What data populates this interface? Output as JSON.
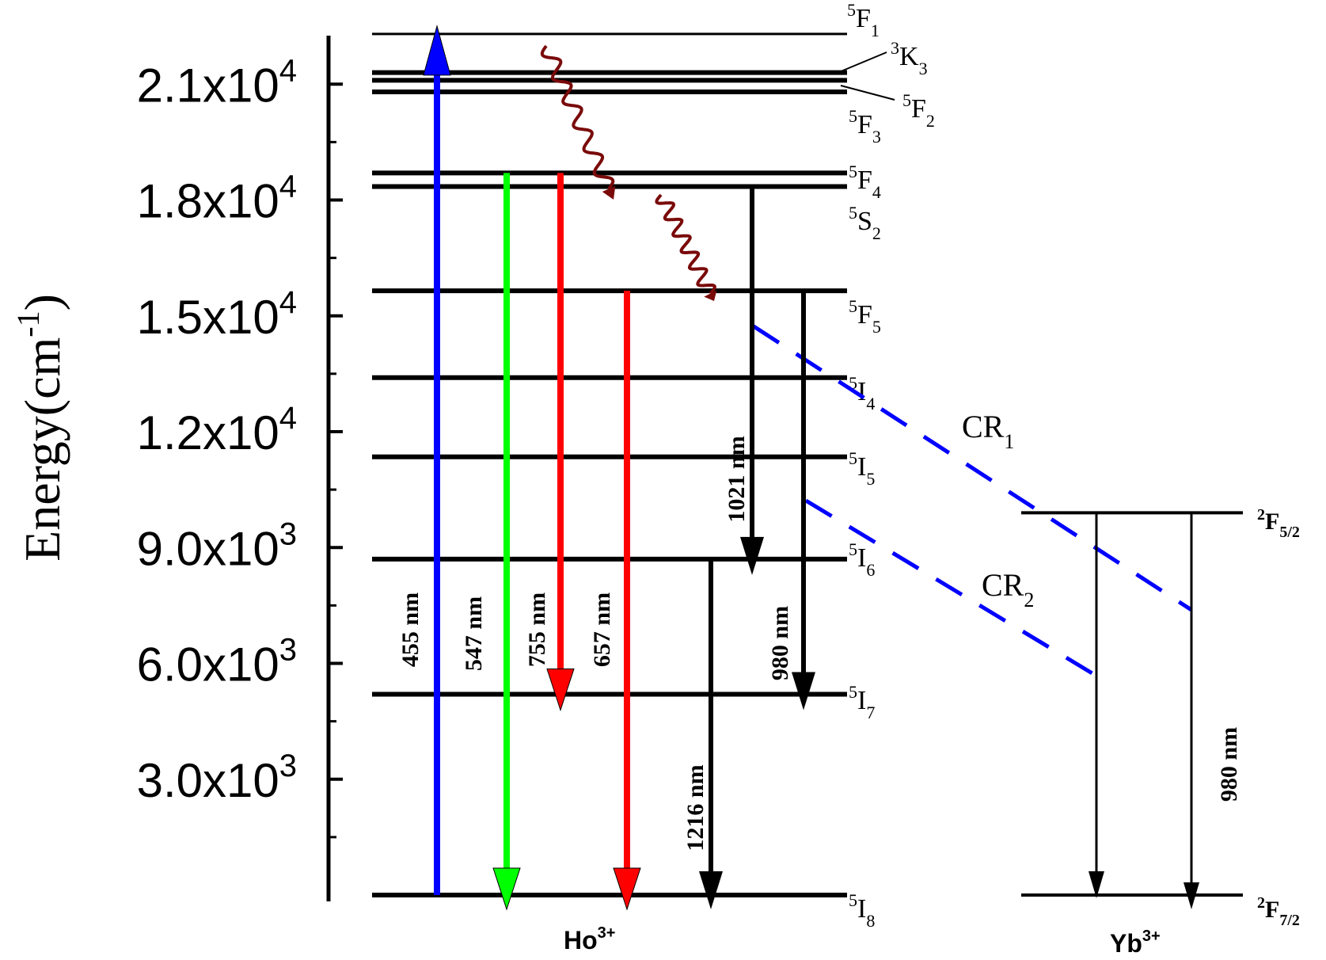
{
  "axis": {
    "title": "Energy(cm",
    "title_sup": "-1",
    "title_close": ")",
    "range": [
      0,
      21800
    ],
    "major_ticks": [
      {
        "value": 3000,
        "label": "3.0x10",
        "exp": "3"
      },
      {
        "value": 6000,
        "label": "6.0x10",
        "exp": "3"
      },
      {
        "value": 9000,
        "label": "9.0x10",
        "exp": "3"
      },
      {
        "value": 12000,
        "label": "1.2x10",
        "exp": "4"
      },
      {
        "value": 15000,
        "label": "1.5x10",
        "exp": "4"
      },
      {
        "value": 18000,
        "label": "1.8x10",
        "exp": "4"
      },
      {
        "value": 21000,
        "label": "2.1x10",
        "exp": "4"
      }
    ],
    "minor_ticks": [
      1500,
      4500,
      7500,
      10500,
      13500,
      16500,
      19500
    ]
  },
  "ho_levels": [
    {
      "id": "5F1",
      "energy": 22300,
      "sup": "5",
      "base": "F",
      "sub": "1"
    },
    {
      "id": "3K3",
      "energy": 21300,
      "sup": "3",
      "base": "K",
      "sub": "3"
    },
    {
      "id": "5F2",
      "energy": 21100,
      "sup": "5",
      "base": "F",
      "sub": "2"
    },
    {
      "id": "5F3",
      "energy": 20800,
      "sup": "5",
      "base": "F",
      "sub": "3"
    },
    {
      "id": "5F4",
      "energy": 18700,
      "sup": "5",
      "base": "F",
      "sub": "4"
    },
    {
      "id": "5S2",
      "energy": 18350,
      "sup": "5",
      "base": "S",
      "sub": "2"
    },
    {
      "id": "5F5",
      "energy": 15650,
      "sup": "5",
      "base": "F",
      "sub": "5"
    },
    {
      "id": "5I4",
      "energy": 13400,
      "sup": "5",
      "base": "I",
      "sub": "4"
    },
    {
      "id": "5I5",
      "energy": 11350,
      "sup": "5",
      "base": "I",
      "sub": "5"
    },
    {
      "id": "5I6",
      "energy": 8700,
      "sup": "5",
      "base": "I",
      "sub": "6"
    },
    {
      "id": "5I7",
      "energy": 5200,
      "sup": "5",
      "base": "I",
      "sub": "7"
    },
    {
      "id": "5I8",
      "energy": 0,
      "sup": "5",
      "base": "I",
      "sub": "8"
    }
  ],
  "yb_levels": [
    {
      "id": "2F5/2",
      "energy": 9900,
      "sup": "2",
      "base": "F",
      "sub": "5/2"
    },
    {
      "id": "2F7/2",
      "energy": 0,
      "sup": "2",
      "base": "F",
      "sub": "7/2"
    }
  ],
  "transitions": [
    {
      "label": "455 nm",
      "color": "#0000ff",
      "from": 0,
      "to": 22300,
      "direction": "up"
    },
    {
      "label": "547 nm",
      "color": "#00ff00",
      "from": 18700,
      "to": 0,
      "direction": "down"
    },
    {
      "label": "755 nm",
      "color": "#ff0000",
      "from": 18700,
      "to": 5200,
      "direction": "down"
    },
    {
      "label": "657 nm",
      "color": "#ff0000",
      "from": 15650,
      "to": 0,
      "direction": "down"
    },
    {
      "label": "1216 nm",
      "color": "#000000",
      "from": 8700,
      "to": 0,
      "direction": "down"
    },
    {
      "label": "1021 nm",
      "color": "#000000",
      "from": 18350,
      "to": 8700,
      "direction": "down"
    },
    {
      "label": "980 nm",
      "color": "#000000",
      "from": 15650,
      "to": 5200,
      "direction": "down"
    },
    {
      "label": "980 nm",
      "color": "#000000",
      "from": 9900,
      "to": 0,
      "direction": "down",
      "ion": "Yb"
    }
  ],
  "cross_relaxation": [
    {
      "label": "CR",
      "sub": "1",
      "color": "#0000ff"
    },
    {
      "label": "CR",
      "sub": "2",
      "color": "#0000ff"
    }
  ],
  "ions": {
    "ho": {
      "base": "Ho",
      "sup": "3+"
    },
    "yb": {
      "base": "Yb",
      "sup": "3+"
    }
  },
  "colors": {
    "nonradiative": "#7a0a0a",
    "level": "#000000"
  }
}
